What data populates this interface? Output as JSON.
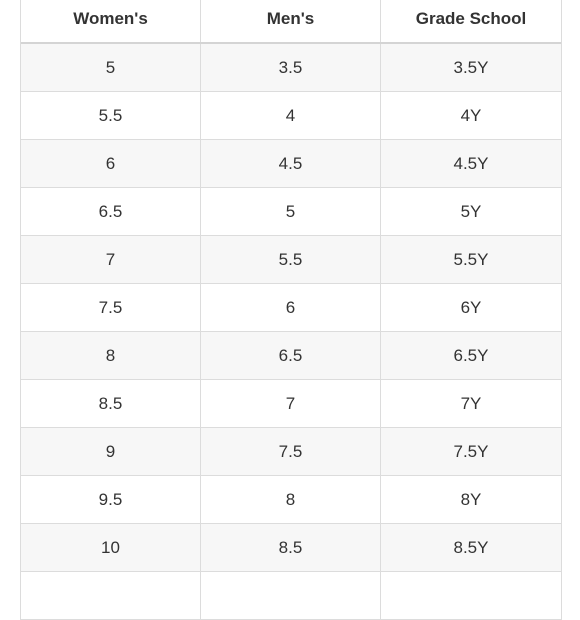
{
  "table": {
    "headers": [
      "Women's",
      "Men's",
      "Grade School"
    ],
    "rows": [
      [
        "5",
        "3.5",
        "3.5Y"
      ],
      [
        "5.5",
        "4",
        "4Y"
      ],
      [
        "6",
        "4.5",
        "4.5Y"
      ],
      [
        "6.5",
        "5",
        "5Y"
      ],
      [
        "7",
        "5.5",
        "5.5Y"
      ],
      [
        "7.5",
        "6",
        "6Y"
      ],
      [
        "8",
        "6.5",
        "6.5Y"
      ],
      [
        "8.5",
        "7",
        "7Y"
      ],
      [
        "9",
        "7.5",
        "7.5Y"
      ],
      [
        "9.5",
        "8",
        "8Y"
      ],
      [
        "10",
        "8.5",
        "8.5Y"
      ],
      [
        "",
        "",
        ""
      ]
    ]
  }
}
